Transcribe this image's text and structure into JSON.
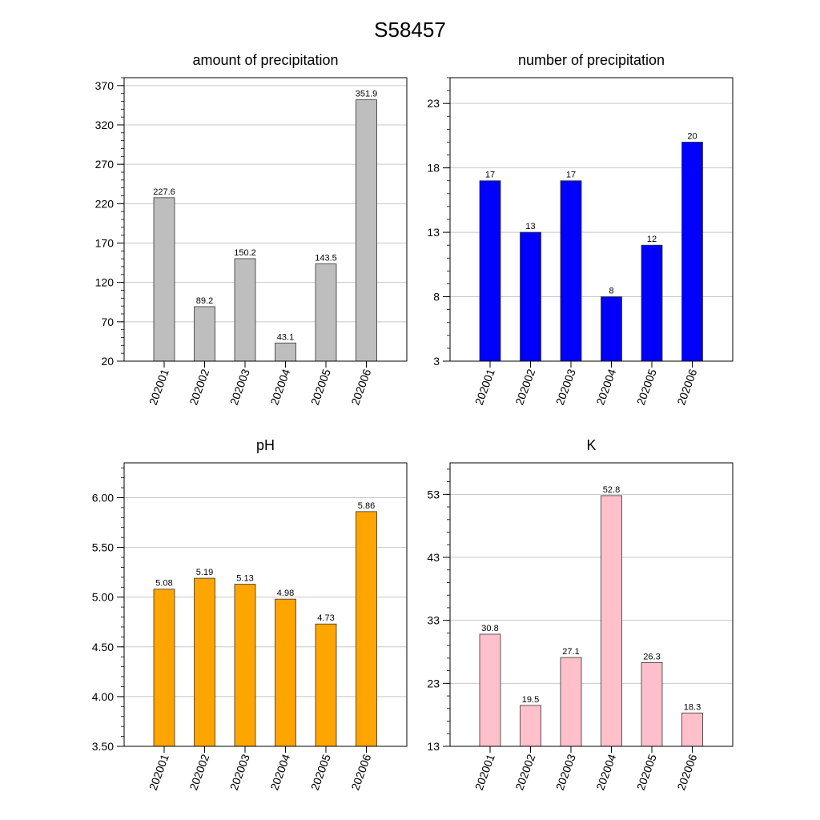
{
  "figure": {
    "title": "S58457"
  },
  "chart_data": [
    {
      "type": "bar",
      "title": "amount of precipitation",
      "categories": [
        "202001",
        "202002",
        "202003",
        "202004",
        "202005",
        "202006"
      ],
      "values": [
        227.6,
        89.2,
        150.2,
        43.1,
        143.5,
        351.9
      ],
      "value_labels": [
        "227.6",
        "89.2",
        "150.2",
        "43.1",
        "143.5",
        "351.9"
      ],
      "ylim": [
        20,
        380
      ],
      "yticks": [
        20,
        70,
        120,
        170,
        220,
        270,
        320,
        370
      ],
      "ytick_labels": [
        "20",
        "70",
        "120",
        "170",
        "220",
        "270",
        "320",
        "370"
      ],
      "minor_step": 10,
      "grid": true,
      "bar_color": "#bebebe"
    },
    {
      "type": "bar",
      "title": "number of precipitation",
      "categories": [
        "202001",
        "202002",
        "202003",
        "202004",
        "202005",
        "202006"
      ],
      "values": [
        17,
        13,
        17,
        8,
        12,
        20
      ],
      "value_labels": [
        "17",
        "13",
        "17",
        "8",
        "12",
        "20"
      ],
      "ylim": [
        3,
        25
      ],
      "yticks": [
        3,
        8,
        13,
        18,
        23
      ],
      "ytick_labels": [
        "3",
        "8",
        "13",
        "18",
        "23"
      ],
      "minor_step": 1,
      "grid": true,
      "bar_color": "#0000ff"
    },
    {
      "type": "bar",
      "title": "pH",
      "categories": [
        "202001",
        "202002",
        "202003",
        "202004",
        "202005",
        "202006"
      ],
      "values": [
        5.08,
        5.19,
        5.13,
        4.98,
        4.73,
        5.86
      ],
      "value_labels": [
        "5.08",
        "5.19",
        "5.13",
        "4.98",
        "4.73",
        "5.86"
      ],
      "ylim": [
        3.5,
        6.35
      ],
      "yticks": [
        3.5,
        4.0,
        4.5,
        5.0,
        5.5,
        6.0
      ],
      "ytick_labels": [
        "3.50",
        "4.00",
        "4.50",
        "5.00",
        "5.50",
        "6.00"
      ],
      "minor_step": 0.1,
      "grid": true,
      "bar_color": "#ffa500"
    },
    {
      "type": "bar",
      "title": "K",
      "categories": [
        "202001",
        "202002",
        "202003",
        "202004",
        "202005",
        "202006"
      ],
      "values": [
        30.8,
        19.5,
        27.1,
        52.8,
        26.3,
        18.3
      ],
      "value_labels": [
        "30.8",
        "19.5",
        "27.1",
        "52.8",
        "26.3",
        "18.3"
      ],
      "ylim": [
        13,
        58
      ],
      "yticks": [
        13,
        23,
        33,
        43,
        53
      ],
      "ytick_labels": [
        "13",
        "23",
        "33",
        "43",
        "53"
      ],
      "minor_step": 2,
      "grid": true,
      "bar_color": "#ffc0cb"
    }
  ]
}
